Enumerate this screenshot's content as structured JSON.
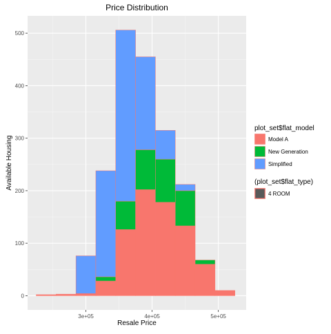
{
  "chart_data": {
    "type": "bar",
    "title": "Price Distribution",
    "xlabel": "Resale Price",
    "ylabel": "Available Housing",
    "x_ticks": [
      {
        "value": 300000,
        "label": "3e+05"
      },
      {
        "value": 400000,
        "label": "4e+05"
      },
      {
        "value": 500000,
        "label": "5e+05"
      }
    ],
    "y_ticks": [
      0,
      100,
      200,
      300,
      400,
      500
    ],
    "xlim": [
      212000,
      542000
    ],
    "ylim": [
      -27,
      533
    ],
    "bins": [
      {
        "x0": 225000,
        "x1": 255000,
        "values": [
          2,
          0,
          0
        ]
      },
      {
        "x0": 255000,
        "x1": 285000,
        "values": [
          3,
          0,
          0
        ]
      },
      {
        "x0": 285000,
        "x1": 315000,
        "values": [
          4,
          0,
          72
        ]
      },
      {
        "x0": 315000,
        "x1": 345000,
        "values": [
          28,
          8,
          202
        ]
      },
      {
        "x0": 345000,
        "x1": 375000,
        "values": [
          126,
          54,
          326
        ]
      },
      {
        "x0": 375000,
        "x1": 405000,
        "values": [
          202,
          76,
          177
        ]
      },
      {
        "x0": 405000,
        "x1": 435000,
        "values": [
          178,
          82,
          55
        ]
      },
      {
        "x0": 435000,
        "x1": 465000,
        "values": [
          133,
          67,
          12
        ]
      },
      {
        "x0": 465000,
        "x1": 495000,
        "values": [
          60,
          8,
          0
        ]
      },
      {
        "x0": 495000,
        "x1": 525000,
        "values": [
          10,
          0,
          0
        ]
      }
    ],
    "series": [
      {
        "name": "Model A",
        "color": "#F8766D"
      },
      {
        "name": "New Generation",
        "color": "#00BA38"
      },
      {
        "name": "Simplified",
        "color": "#619CFF"
      }
    ],
    "outline_color": "#F8766D",
    "grid": true,
    "panel_background": "#EBEBEB",
    "legend": {
      "position": "right",
      "fill_title": "plot_set$flat_model",
      "colour_title": "(plot_set$flat_type)",
      "colour_entries": [
        {
          "name": "4 ROOM",
          "fill": "#595959",
          "stroke": "#F8766D"
        }
      ]
    }
  }
}
